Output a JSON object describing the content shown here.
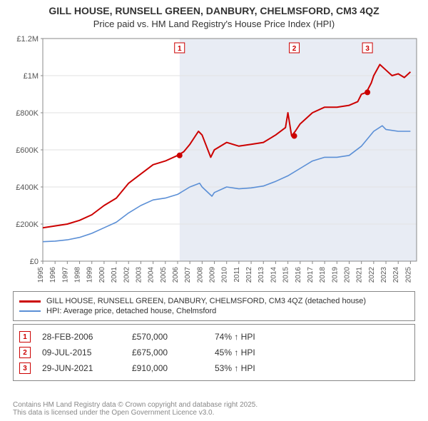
{
  "title_line1": "GILL HOUSE, RUNSELL GREEN, DANBURY, CHELMSFORD, CM3 4QZ",
  "title_line2": "Price paid vs. HM Land Registry's House Price Index (HPI)",
  "chart": {
    "type": "line",
    "plot_bg": "#ffffff",
    "shaded_bg": "#e8ecf4",
    "gridline_color": "#e2e2e2",
    "axis_color": "#888888",
    "x_years": [
      1995,
      1996,
      1997,
      1998,
      1999,
      2000,
      2001,
      2002,
      2003,
      2004,
      2005,
      2006,
      2007,
      2008,
      2009,
      2010,
      2011,
      2012,
      2013,
      2014,
      2015,
      2016,
      2017,
      2018,
      2019,
      2020,
      2021,
      2022,
      2023,
      2024,
      2025
    ],
    "x_domain": [
      1995,
      2025.5
    ],
    "y_domain": [
      0,
      1200000
    ],
    "y_ticks": [
      0,
      200000,
      400000,
      600000,
      800000,
      1000000,
      1200000
    ],
    "y_tick_labels": [
      "£0",
      "£200K",
      "£400K",
      "£600K",
      "£800K",
      "£1M",
      "£1.2M"
    ],
    "series": [
      {
        "name": "gill-house",
        "label": "GILL HOUSE, RUNSELL GREEN, DANBURY, CHELMSFORD, CM3 4QZ (detached house)",
        "color": "#cc0000",
        "width": 2,
        "points": [
          [
            1995,
            180000
          ],
          [
            1996,
            190000
          ],
          [
            1997,
            200000
          ],
          [
            1998,
            220000
          ],
          [
            1999,
            250000
          ],
          [
            2000,
            300000
          ],
          [
            2001,
            340000
          ],
          [
            2002,
            420000
          ],
          [
            2003,
            470000
          ],
          [
            2004,
            520000
          ],
          [
            2005,
            540000
          ],
          [
            2006,
            570000
          ],
          [
            2006.5,
            590000
          ],
          [
            2007,
            630000
          ],
          [
            2007.7,
            700000
          ],
          [
            2008,
            680000
          ],
          [
            2008.7,
            560000
          ],
          [
            2009,
            600000
          ],
          [
            2010,
            640000
          ],
          [
            2011,
            620000
          ],
          [
            2012,
            630000
          ],
          [
            2013,
            640000
          ],
          [
            2014,
            680000
          ],
          [
            2014.8,
            720000
          ],
          [
            2015,
            800000
          ],
          [
            2015.3,
            675000
          ],
          [
            2015.6,
            700000
          ],
          [
            2016,
            740000
          ],
          [
            2017,
            800000
          ],
          [
            2018,
            830000
          ],
          [
            2019,
            830000
          ],
          [
            2020,
            840000
          ],
          [
            2020.7,
            860000
          ],
          [
            2021,
            900000
          ],
          [
            2021.4,
            910000
          ],
          [
            2021.8,
            960000
          ],
          [
            2022,
            1000000
          ],
          [
            2022.5,
            1060000
          ],
          [
            2023,
            1030000
          ],
          [
            2023.5,
            1000000
          ],
          [
            2024,
            1010000
          ],
          [
            2024.5,
            990000
          ],
          [
            2025,
            1020000
          ]
        ]
      },
      {
        "name": "hpi",
        "label": "HPI: Average price, detached house, Chelmsford",
        "color": "#5b8fd6",
        "width": 1.6,
        "points": [
          [
            1995,
            105000
          ],
          [
            1996,
            108000
          ],
          [
            1997,
            115000
          ],
          [
            1998,
            128000
          ],
          [
            1999,
            150000
          ],
          [
            2000,
            180000
          ],
          [
            2001,
            210000
          ],
          [
            2002,
            260000
          ],
          [
            2003,
            300000
          ],
          [
            2004,
            330000
          ],
          [
            2005,
            340000
          ],
          [
            2006,
            360000
          ],
          [
            2007,
            400000
          ],
          [
            2007.8,
            420000
          ],
          [
            2008,
            400000
          ],
          [
            2008.8,
            350000
          ],
          [
            2009,
            370000
          ],
          [
            2010,
            400000
          ],
          [
            2011,
            390000
          ],
          [
            2012,
            395000
          ],
          [
            2013,
            405000
          ],
          [
            2014,
            430000
          ],
          [
            2015,
            460000
          ],
          [
            2016,
            500000
          ],
          [
            2017,
            540000
          ],
          [
            2018,
            560000
          ],
          [
            2019,
            560000
          ],
          [
            2020,
            570000
          ],
          [
            2021,
            620000
          ],
          [
            2022,
            700000
          ],
          [
            2022.7,
            730000
          ],
          [
            2023,
            710000
          ],
          [
            2024,
            700000
          ],
          [
            2025,
            700000
          ]
        ]
      }
    ],
    "sale_markers": [
      {
        "n": "1",
        "x": 2006.16,
        "y": 570000
      },
      {
        "n": "2",
        "x": 2015.52,
        "y": 675000
      },
      {
        "n": "3",
        "x": 2021.49,
        "y": 910000
      }
    ],
    "shaded_until_year": 2025.5
  },
  "legend": {
    "rows": [
      {
        "color": "#cc0000",
        "label": "GILL HOUSE, RUNSELL GREEN, DANBURY, CHELMSFORD, CM3 4QZ (detached house)"
      },
      {
        "color": "#5b8fd6",
        "label": "HPI: Average price, detached house, Chelmsford"
      }
    ]
  },
  "sales": [
    {
      "n": "1",
      "date": "28-FEB-2006",
      "price": "£570,000",
      "pct": "74% ↑ HPI"
    },
    {
      "n": "2",
      "date": "09-JUL-2015",
      "price": "£675,000",
      "pct": "45% ↑ HPI"
    },
    {
      "n": "3",
      "date": "29-JUN-2021",
      "price": "£910,000",
      "pct": "53% ↑ HPI"
    }
  ],
  "footnote": "Contains HM Land Registry data © Crown copyright and database right 2025.\nThis data is licensed under the Open Government Licence v3.0."
}
